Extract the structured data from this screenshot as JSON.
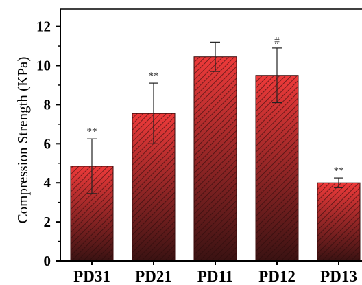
{
  "chart_data": {
    "type": "bar",
    "title": "",
    "xlabel": "",
    "ylabel": "Compression Strength (KPa)",
    "categories": [
      "PD31",
      "PD21",
      "PD11",
      "PD12",
      "PD13"
    ],
    "values": [
      4.85,
      7.55,
      10.45,
      9.5,
      4.0
    ],
    "errors": [
      1.4,
      1.55,
      0.75,
      1.4,
      0.25
    ],
    "annotations": [
      "**",
      "**",
      "",
      "#",
      "**"
    ],
    "ylim": [
      0,
      12.9
    ],
    "yticks": [
      0,
      2,
      4,
      6,
      8,
      10,
      12
    ],
    "grid": false,
    "colors": {
      "bar_top": "#ee3a3a",
      "bar_bottom": "#3a1212",
      "hatch": "#2a0a0a",
      "axis": "#000000"
    }
  }
}
